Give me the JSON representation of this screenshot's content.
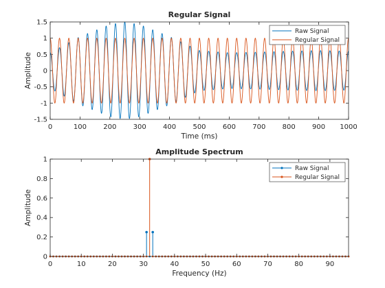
{
  "chart_data": [
    {
      "type": "line",
      "title": "Regular Signal",
      "xlabel": "Time (ms)",
      "ylabel": "Amplitude",
      "xlim": [
        0,
        1000
      ],
      "ylim": [
        -1.5,
        1.5
      ],
      "xticks": [
        "0",
        "100",
        "200",
        "300",
        "400",
        "500",
        "600",
        "700",
        "800",
        "900",
        "1000"
      ],
      "yticks": [
        "-1.5",
        "-1",
        "-0.5",
        "0",
        "0.5",
        "1",
        "1.5"
      ],
      "grid": false,
      "legend": "top-right",
      "signal_frequency_hz": 32,
      "series": [
        {
          "name": "Raw Signal",
          "color": "#0072BD",
          "amplitude_envelope": {
            "t_ms": [
              0,
              100,
              200,
              250,
              300,
              400,
              500,
              600,
              700,
              800,
              900,
              1000
            ],
            "amp": [
              0.55,
              1.05,
              1.42,
              1.5,
              1.42,
              1.05,
              0.62,
              0.55,
              0.57,
              0.6,
              0.62,
              0.6
            ]
          }
        },
        {
          "name": "Regular Signal",
          "color": "#D95319",
          "amplitude_envelope": {
            "t_ms": [
              0,
              1000
            ],
            "amp": [
              1.0,
              1.0
            ]
          }
        }
      ]
    },
    {
      "type": "stem",
      "title": "Amplitude Spectrum",
      "xlabel": "Frequency (Hz)",
      "ylabel": "Amplitude",
      "xlim": [
        0,
        96
      ],
      "ylim": [
        0,
        1
      ],
      "xticks": [
        "0",
        "10",
        "20",
        "30",
        "40",
        "50",
        "60",
        "70",
        "80",
        "90"
      ],
      "yticks": [
        "0",
        "0.2",
        "0.4",
        "0.6",
        "0.8",
        "1"
      ],
      "grid": false,
      "legend": "top-right",
      "series": [
        {
          "name": "Raw Signal",
          "color": "#0072BD",
          "points": [
            [
              31,
              0.25
            ],
            [
              33,
              0.25
            ]
          ]
        },
        {
          "name": "Regular Signal",
          "color": "#D95319",
          "points": [
            [
              32,
              1.0
            ]
          ]
        }
      ]
    }
  ]
}
